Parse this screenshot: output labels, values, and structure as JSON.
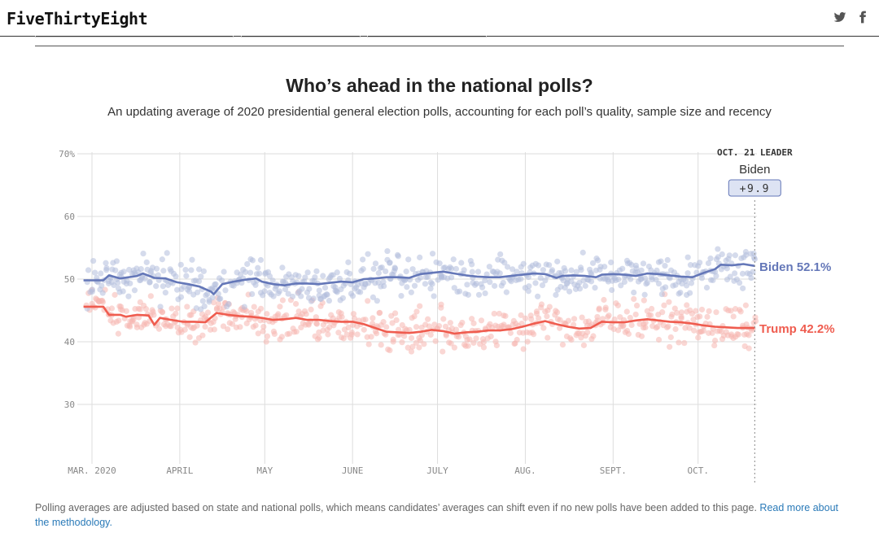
{
  "site": {
    "logo": "FiveThirtyEight",
    "social": [
      {
        "name": "twitter-icon"
      },
      {
        "name": "facebook-icon"
      }
    ]
  },
  "chart": {
    "title": "Who’s ahead in the national polls?",
    "subtitle": "An updating average of 2020 presidential general election polls, accounting for each poll’s quality, sample size and recency"
  },
  "leader": {
    "heading": "OCT. 21 LEADER",
    "name": "Biden",
    "margin": "+9.9"
  },
  "footnote": {
    "text": "Polling averages are adjusted based on state and national polls, which means candidates’ averages can shift even if no new polls have been added to this page.",
    "link": "Read more about the methodology."
  },
  "colors": {
    "biden": "#6477b8",
    "trump": "#ef5c4f",
    "biden_dot": "#b3bddc",
    "trump_dot": "#f6b6b0",
    "grid": "#dddddd"
  },
  "chart_data": {
    "type": "line",
    "title": "Who’s ahead in the national polls?",
    "ylim": [
      20,
      70
    ],
    "yticks": [
      30,
      40,
      50,
      60,
      70
    ],
    "ytick_labels": [
      "30",
      "40",
      "50",
      "60",
      "70%"
    ],
    "x_start_day": -2,
    "x_end_day": 234,
    "month_ticks": [
      {
        "day": 0,
        "label": "MAR. 2020"
      },
      {
        "day": 31,
        "label": "APRIL"
      },
      {
        "day": 61,
        "label": "MAY"
      },
      {
        "day": 92,
        "label": "JUNE"
      },
      {
        "day": 122,
        "label": "JULY"
      },
      {
        "day": 153,
        "label": "AUG."
      },
      {
        "day": 184,
        "label": "SEPT."
      },
      {
        "day": 214,
        "label": "OCT."
      }
    ],
    "leader_day": 234,
    "series": [
      {
        "name": "Biden",
        "end_label": "Biden 52.1%",
        "points": [
          [
            -3,
            49.8
          ],
          [
            4,
            49.8
          ],
          [
            6,
            50.6
          ],
          [
            10,
            50.1
          ],
          [
            16,
            50.5
          ],
          [
            18,
            50.9
          ],
          [
            22,
            50.2
          ],
          [
            26,
            50.1
          ],
          [
            30,
            49.5
          ],
          [
            34,
            49.2
          ],
          [
            38,
            48.8
          ],
          [
            42,
            48.0
          ],
          [
            43,
            47.6
          ],
          [
            46,
            49.2
          ],
          [
            50,
            49.6
          ],
          [
            54,
            49.9
          ],
          [
            58,
            50.1
          ],
          [
            60,
            49.6
          ],
          [
            64,
            49.2
          ],
          [
            68,
            49.0
          ],
          [
            72,
            49.3
          ],
          [
            76,
            49.3
          ],
          [
            80,
            49.2
          ],
          [
            84,
            49.4
          ],
          [
            88,
            49.6
          ],
          [
            92,
            49.5
          ],
          [
            96,
            50.0
          ],
          [
            100,
            50.1
          ],
          [
            104,
            50.3
          ],
          [
            108,
            50.3
          ],
          [
            112,
            50.2
          ],
          [
            116,
            50.8
          ],
          [
            120,
            51.0
          ],
          [
            124,
            51.2
          ],
          [
            128,
            50.9
          ],
          [
            132,
            50.6
          ],
          [
            136,
            50.4
          ],
          [
            140,
            50.3
          ],
          [
            144,
            50.3
          ],
          [
            148,
            50.5
          ],
          [
            152,
            50.7
          ],
          [
            156,
            50.9
          ],
          [
            160,
            50.8
          ],
          [
            164,
            50.2
          ],
          [
            166,
            50.5
          ],
          [
            170,
            50.6
          ],
          [
            174,
            50.5
          ],
          [
            178,
            50.3
          ],
          [
            180,
            50.7
          ],
          [
            184,
            50.8
          ],
          [
            188,
            50.7
          ],
          [
            192,
            50.5
          ],
          [
            196,
            50.9
          ],
          [
            200,
            50.8
          ],
          [
            204,
            50.6
          ],
          [
            208,
            50.4
          ],
          [
            212,
            50.3
          ],
          [
            216,
            51.0
          ],
          [
            220,
            51.6
          ],
          [
            222,
            52.3
          ],
          [
            226,
            52.2
          ],
          [
            230,
            52.4
          ],
          [
            234,
            52.1
          ]
        ]
      },
      {
        "name": "Trump",
        "end_label": "Trump 42.2%",
        "points": [
          [
            -3,
            45.6
          ],
          [
            4,
            45.6
          ],
          [
            6,
            44.3
          ],
          [
            10,
            44.3
          ],
          [
            12,
            44.0
          ],
          [
            16,
            44.3
          ],
          [
            20,
            44.2
          ],
          [
            22,
            42.7
          ],
          [
            24,
            43.8
          ],
          [
            28,
            43.5
          ],
          [
            32,
            43.2
          ],
          [
            36,
            43.2
          ],
          [
            40,
            43.1
          ],
          [
            44,
            44.6
          ],
          [
            48,
            44.3
          ],
          [
            52,
            44.1
          ],
          [
            56,
            44.0
          ],
          [
            60,
            43.8
          ],
          [
            64,
            43.5
          ],
          [
            68,
            43.6
          ],
          [
            72,
            43.8
          ],
          [
            76,
            43.5
          ],
          [
            80,
            43.5
          ],
          [
            84,
            43.3
          ],
          [
            88,
            43.2
          ],
          [
            92,
            43.2
          ],
          [
            96,
            42.8
          ],
          [
            100,
            42.2
          ],
          [
            104,
            41.6
          ],
          [
            108,
            41.5
          ],
          [
            112,
            41.4
          ],
          [
            116,
            41.6
          ],
          [
            120,
            41.9
          ],
          [
            124,
            41.7
          ],
          [
            128,
            41.3
          ],
          [
            132,
            41.5
          ],
          [
            136,
            41.6
          ],
          [
            140,
            41.8
          ],
          [
            144,
            41.8
          ],
          [
            148,
            42.0
          ],
          [
            152,
            42.4
          ],
          [
            156,
            42.9
          ],
          [
            160,
            43.3
          ],
          [
            164,
            42.8
          ],
          [
            168,
            42.4
          ],
          [
            172,
            42.1
          ],
          [
            176,
            42.2
          ],
          [
            180,
            43.2
          ],
          [
            184,
            43.1
          ],
          [
            188,
            43.1
          ],
          [
            192,
            43.4
          ],
          [
            196,
            43.6
          ],
          [
            200,
            43.4
          ],
          [
            204,
            43.2
          ],
          [
            208,
            43.1
          ],
          [
            212,
            42.9
          ],
          [
            216,
            42.6
          ],
          [
            220,
            42.4
          ],
          [
            224,
            42.3
          ],
          [
            228,
            42.2
          ],
          [
            234,
            42.2
          ]
        ]
      }
    ]
  }
}
